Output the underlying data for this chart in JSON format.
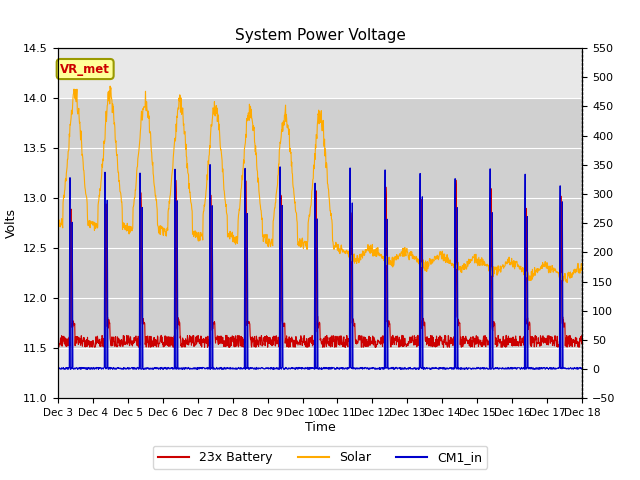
{
  "title": "System Power Voltage",
  "xlabel": "Time",
  "ylabel_left": "Volts",
  "ylim_left": [
    11.0,
    14.5
  ],
  "ylim_right": [
    -50,
    550
  ],
  "yticks_left": [
    11.0,
    11.5,
    12.0,
    12.5,
    13.0,
    13.5,
    14.0,
    14.5
  ],
  "yticks_right": [
    -50,
    0,
    50,
    100,
    150,
    200,
    250,
    300,
    350,
    400,
    450,
    500,
    550
  ],
  "xtick_positions": [
    0,
    1,
    2,
    3,
    4,
    5,
    6,
    7,
    8,
    9,
    10,
    11,
    12,
    13,
    14,
    15
  ],
  "xtick_labels": [
    "Dec 3",
    "Dec 4",
    "Dec 5",
    "Dec 6",
    "Dec 7",
    "Dec 8",
    "Dec 9",
    "Dec 10",
    "Dec 11",
    "Dec 12",
    "Dec 13",
    "Dec 14",
    "Dec 15",
    "Dec 16",
    "Dec 17",
    "Dec 18"
  ],
  "xlim": [
    0,
    15
  ],
  "legend_labels": [
    "23x Battery",
    "Solar",
    "CM1_in"
  ],
  "color_battery": "#cc0000",
  "color_solar": "#ffaa00",
  "color_cm1": "#0000cc",
  "vr_met_label": "VR_met",
  "vr_met_bg": "#ffff99",
  "vr_met_border": "#999900",
  "vr_met_text_color": "#cc0000",
  "bg_color": "#ffffff",
  "plot_bg_color": "#e8e8e8",
  "grid_color": "#ffffff",
  "shaded_band_ymin": 11.5,
  "shaded_band_ymax": 14.0,
  "shaded_band_color": "#d0d0d0",
  "num_days": 15,
  "points_per_day": 96
}
